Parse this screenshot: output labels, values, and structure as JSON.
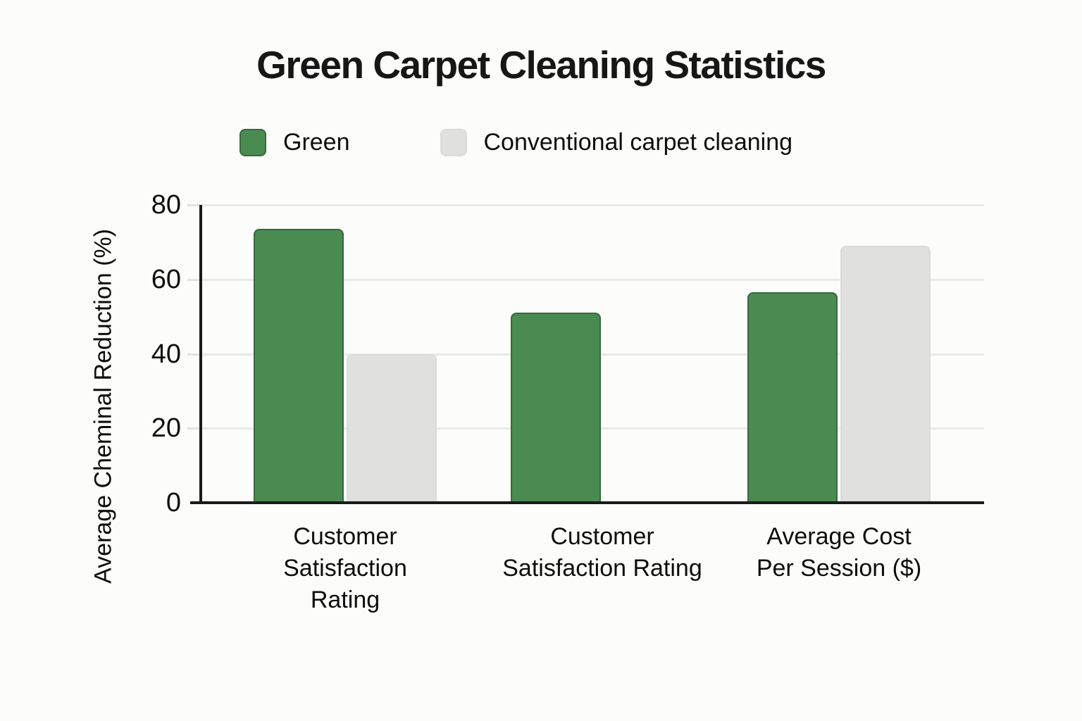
{
  "page": {
    "background": "#fcfcfa"
  },
  "chart_data": {
    "type": "bar",
    "title": "Green Carpet Cleaning Statistics",
    "ylabel": "Average Cheminal Reduction (%)",
    "xlabel": "",
    "categories": [
      "Customer Satisfaction Rating",
      "Customer Satisfaction Rating",
      "Average Cost Per Session ($)"
    ],
    "category_display_lines": [
      [
        "Customer",
        "Satisfaction",
        "Rating"
      ],
      [
        "Customer",
        "Satisfaction Rating"
      ],
      [
        "Average Cost",
        "Per Session ($)"
      ]
    ],
    "series": [
      {
        "name": "Green",
        "color": "#4a8b52",
        "border_color": "#38693f",
        "values": [
          73.5,
          51,
          56.5
        ]
      },
      {
        "name": "Conventional carpet cleaning",
        "color": "#e0e0de",
        "border_color": "#dbdbd9",
        "values": [
          40,
          0,
          69
        ]
      }
    ],
    "ylim": [
      0,
      80
    ],
    "yticks": [
      0,
      20,
      40,
      60,
      80
    ],
    "grid": true,
    "legend_position": "top",
    "axis_color": "#1a1a1a",
    "gridline_color": "#e9e9e7",
    "text_color": "#111111"
  }
}
